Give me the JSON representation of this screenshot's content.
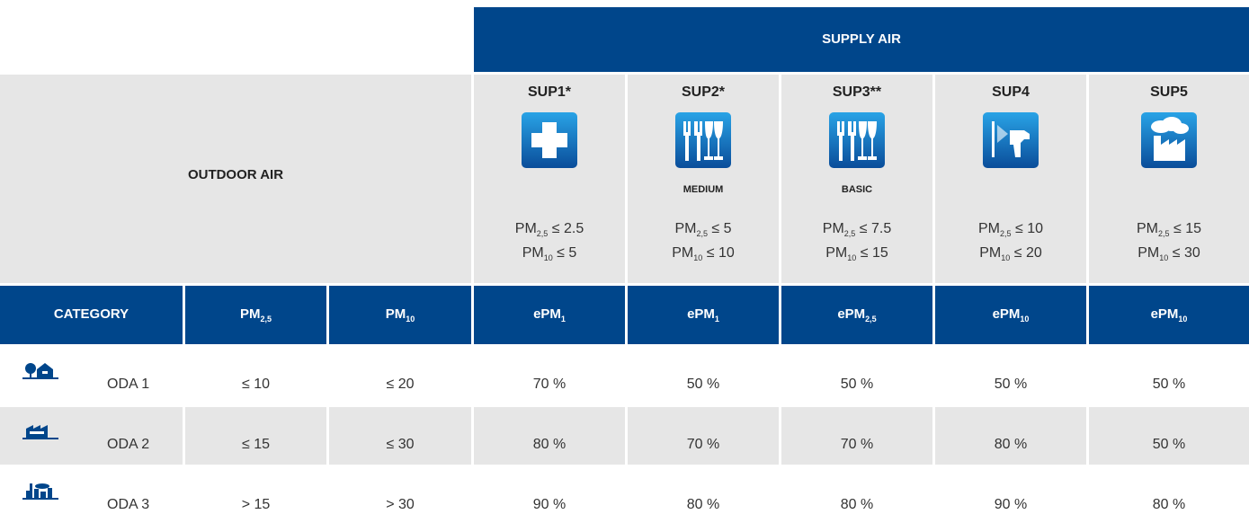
{
  "header": {
    "supply_air": "SUPPLY AIR",
    "outdoor_air": "OUTDOOR AIR"
  },
  "supply_classes": [
    {
      "name": "SUP1*",
      "limits": [
        [
          "PM",
          "2,5",
          "≤ 2.5"
        ],
        [
          "PM",
          "10",
          "≤ 5"
        ]
      ]
    },
    {
      "name": "SUP2*",
      "icon_label": "MEDIUM",
      "limits": [
        [
          "PM",
          "2,5",
          "≤ 5"
        ],
        [
          "PM",
          "10",
          "≤ 10"
        ]
      ]
    },
    {
      "name": "SUP3**",
      "icon_label": "BASIC",
      "limits": [
        [
          "PM",
          "2,5",
          "≤ 7.5"
        ],
        [
          "PM",
          "10",
          "≤ 15"
        ]
      ]
    },
    {
      "name": "SUP4",
      "limits": [
        [
          "PM",
          "2,5",
          "≤ 10"
        ],
        [
          "PM",
          "10",
          "≤ 20"
        ]
      ]
    },
    {
      "name": "SUP5",
      "limits": [
        [
          "PM",
          "2,5",
          "≤ 15"
        ],
        [
          "PM",
          "10",
          "≤ 30"
        ]
      ]
    }
  ],
  "table": {
    "columns": [
      [
        "CATEGORY"
      ],
      [
        "PM",
        "2,5"
      ],
      [
        "PM",
        "10"
      ],
      [
        "ePM",
        "1"
      ],
      [
        "ePM",
        "1"
      ],
      [
        "ePM",
        "2,5"
      ],
      [
        "ePM",
        "10"
      ],
      [
        "ePM",
        "10"
      ]
    ],
    "rows": [
      [
        "ODA 1",
        "≤ 10",
        "≤ 20",
        "70 %",
        "50 %",
        "50 %",
        "50 %",
        "50 %"
      ],
      [
        "ODA 2",
        "≤ 15",
        "≤ 30",
        "80 %",
        "70 %",
        "70 %",
        "80 %",
        "50 %"
      ],
      [
        "ODA 3",
        "> 15",
        "> 30",
        "90 %",
        "80 %",
        "80 %",
        "90 %",
        "80 %"
      ]
    ]
  }
}
